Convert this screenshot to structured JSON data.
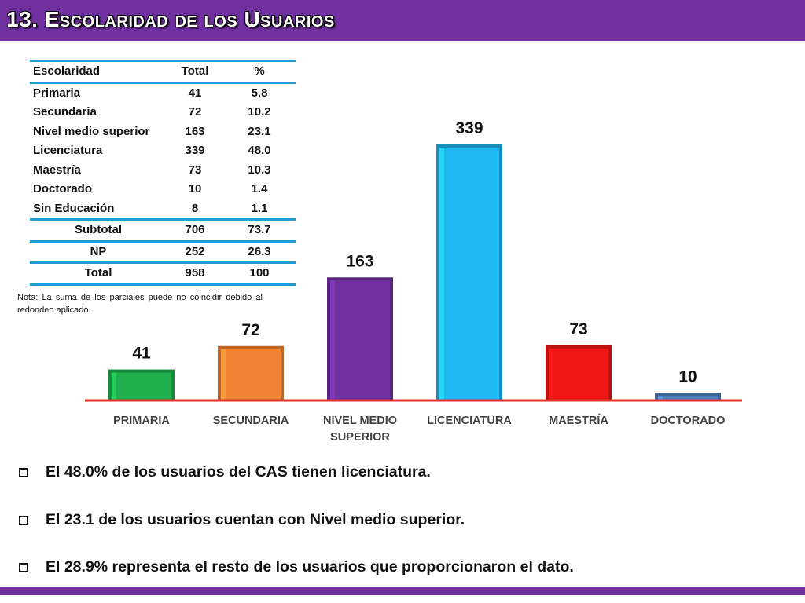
{
  "title": "13. Escolaridad de los Usuarios",
  "table": {
    "headers": [
      "Escolaridad",
      "Total",
      "%"
    ],
    "rows": [
      [
        "Primaria",
        "41",
        "5.8"
      ],
      [
        "Secundaria",
        "72",
        "10.2"
      ],
      [
        "Nivel medio superior",
        "163",
        "23.1"
      ],
      [
        "Licenciatura",
        "339",
        "48.0"
      ],
      [
        "Maestría",
        "73",
        "10.3"
      ],
      [
        "Doctorado",
        "10",
        "1.4"
      ],
      [
        "Sin Educación",
        "8",
        "1.1"
      ]
    ],
    "summary": [
      [
        "Subtotal",
        "706",
        "73.7"
      ],
      [
        "NP",
        "252",
        "26.3"
      ],
      [
        "Total",
        "958",
        "100"
      ]
    ]
  },
  "note": "Nota: La suma de los parciales puede no coincidir debido al redondeo aplicado.",
  "chart_data": {
    "type": "bar",
    "categories": [
      "PRIMARIA",
      "SECUNDARIA",
      "NIVEL MEDIO SUPERIOR",
      "LICENCIATURA",
      "MAESTRÍA",
      "DOCTORADO"
    ],
    "values": [
      41,
      72,
      163,
      339,
      73,
      10
    ],
    "colors": [
      "#1fae4b",
      "#f08232",
      "#7030a0",
      "#1fb7f0",
      "#f01616",
      "#4f81bd"
    ],
    "axis_color": "#e8302a",
    "ylim": [
      0,
      339
    ],
    "title": "",
    "xlabel": "",
    "ylabel": "",
    "grid": false
  },
  "bullets": [
    "El 48.0% de los usuarios del CAS tienen licenciatura.",
    "El 23.1 de los usuarios cuentan con Nivel medio superior.",
    "El  28.9% representa el resto de los usuarios que proporcionaron el dato."
  ]
}
